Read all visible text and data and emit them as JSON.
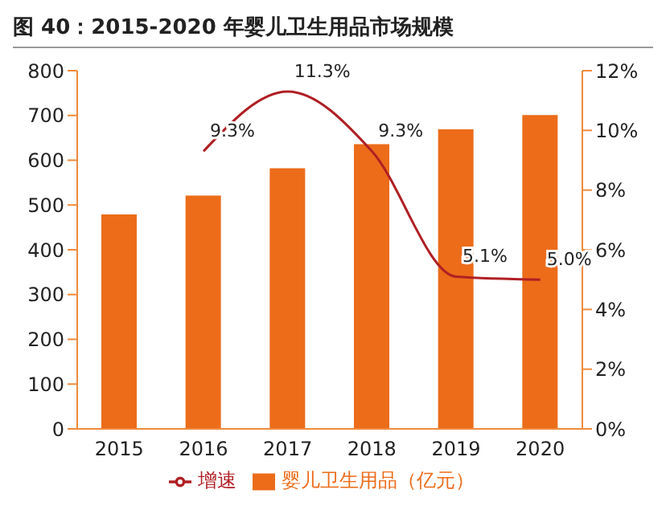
{
  "chart_data": {
    "type": "bar",
    "title": "图 40：2015-2020 年婴儿卫生用品市场规模",
    "categories": [
      "2015",
      "2016",
      "2017",
      "2018",
      "2019",
      "2020"
    ],
    "series": [
      {
        "name": "婴儿卫生用品（亿元）",
        "color": "#ec6c1a",
        "values": [
          479,
          521,
          582,
          636,
          669,
          701
        ]
      },
      {
        "name": "增速",
        "type": "line",
        "axis": "y2",
        "color": "#b01f24",
        "marker": "none",
        "values": [
          null,
          9.3,
          11.3,
          9.3,
          5.1,
          5.0
        ],
        "value_labels": [
          null,
          "9.3%",
          "11.3%",
          "9.3%",
          "5.1%",
          "5.0%"
        ]
      }
    ],
    "ylim": [
      0,
      800
    ],
    "yticks": [
      0,
      100,
      200,
      300,
      400,
      500,
      600,
      700,
      800
    ],
    "y2lim": [
      0,
      12
    ],
    "y2ticks": [
      {
        "value": 0,
        "label": "0%"
      },
      {
        "value": 2,
        "label": "2%"
      },
      {
        "value": 4,
        "label": "4%"
      },
      {
        "value": 6,
        "label": "6%"
      },
      {
        "value": 8,
        "label": "8%"
      },
      {
        "value": 10,
        "label": "10%"
      },
      {
        "value": 12,
        "label": "12%"
      }
    ],
    "grid": false,
    "legend": "bottom"
  }
}
